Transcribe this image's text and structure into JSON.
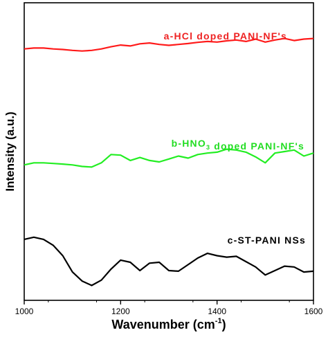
{
  "chart_data": {
    "type": "line",
    "title": "",
    "xlabel": "Wavenumber (cm",
    "xlabel_sup": "-1",
    "xlabel_close": ")",
    "ylabel": "Intensity (a.u.)",
    "xlim": [
      1000,
      1600
    ],
    "ylim": [
      0,
      1
    ],
    "x_ticks": [
      1000,
      1200,
      1400,
      1600
    ],
    "x_tick_labels": [
      "1000",
      "1200",
      "1400",
      "1600"
    ],
    "grid": false,
    "legend": "none",
    "annotations": [
      {
        "id": "a",
        "parts": [
          {
            "t": "a-HCl doped PANI-NF's"
          }
        ],
        "color": "#ee2222"
      },
      {
        "id": "b",
        "parts": [
          {
            "t": "b-HNO"
          },
          {
            "t": "3",
            "sub": true
          },
          {
            "t": " doped PANI-NF's"
          }
        ],
        "color": "#22dd22"
      },
      {
        "id": "c",
        "parts": [
          {
            "t": "c-ST-PANI NSs"
          }
        ],
        "color": "#000000"
      }
    ],
    "series": [
      {
        "color": "#ff1a1a",
        "x": [
          1000,
          1020,
          1040,
          1060,
          1080,
          1100,
          1120,
          1140,
          1160,
          1180,
          1200,
          1220,
          1240,
          1260,
          1280,
          1300,
          1320,
          1340,
          1360,
          1380,
          1400,
          1420,
          1440,
          1460,
          1480,
          1500,
          1520,
          1540,
          1560,
          1580,
          1600
        ],
        "y": [
          0.845,
          0.848,
          0.848,
          0.845,
          0.843,
          0.84,
          0.838,
          0.84,
          0.845,
          0.852,
          0.858,
          0.855,
          0.862,
          0.865,
          0.86,
          0.857,
          0.86,
          0.863,
          0.867,
          0.87,
          0.868,
          0.872,
          0.875,
          0.87,
          0.878,
          0.868,
          0.875,
          0.88,
          0.873,
          0.878,
          0.88
        ]
      },
      {
        "color": "#22ee22",
        "x": [
          1000,
          1020,
          1040,
          1060,
          1080,
          1100,
          1120,
          1140,
          1160,
          1180,
          1200,
          1220,
          1240,
          1260,
          1280,
          1300,
          1320,
          1340,
          1360,
          1380,
          1400,
          1420,
          1440,
          1460,
          1480,
          1500,
          1520,
          1540,
          1560,
          1580,
          1600
        ],
        "y": [
          0.455,
          0.462,
          0.462,
          0.46,
          0.458,
          0.455,
          0.45,
          0.448,
          0.462,
          0.49,
          0.488,
          0.47,
          0.48,
          0.47,
          0.465,
          0.475,
          0.485,
          0.478,
          0.49,
          0.495,
          0.498,
          0.508,
          0.505,
          0.498,
          0.482,
          0.462,
          0.495,
          0.5,
          0.505,
          0.485,
          0.495
        ]
      },
      {
        "color": "#000000",
        "x": [
          1000,
          1020,
          1040,
          1060,
          1080,
          1100,
          1120,
          1140,
          1160,
          1180,
          1200,
          1220,
          1240,
          1260,
          1280,
          1300,
          1320,
          1340,
          1360,
          1380,
          1400,
          1420,
          1440,
          1460,
          1480,
          1500,
          1520,
          1540,
          1560,
          1580,
          1600
        ],
        "y": [
          0.205,
          0.212,
          0.205,
          0.185,
          0.15,
          0.095,
          0.065,
          0.05,
          0.068,
          0.105,
          0.135,
          0.128,
          0.1,
          0.125,
          0.128,
          0.1,
          0.098,
          0.12,
          0.142,
          0.158,
          0.15,
          0.145,
          0.148,
          0.13,
          0.112,
          0.085,
          0.1,
          0.115,
          0.112,
          0.095,
          0.098
        ]
      }
    ]
  }
}
